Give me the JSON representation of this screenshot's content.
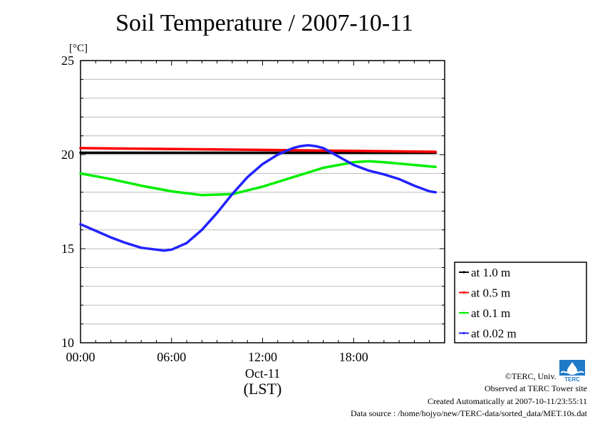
{
  "chart_data": {
    "type": "line",
    "title": "Soil Temperature / 2007-10-11",
    "ylabel": "[°C]",
    "xlabel": "(LST)",
    "date_label": "Oct-11",
    "ylim": [
      10,
      25
    ],
    "xlim": [
      0,
      24
    ],
    "yticks": [
      10,
      15,
      20,
      25
    ],
    "xticks": [
      {
        "value": 0,
        "label": "00:00"
      },
      {
        "value": 6,
        "label": "06:00"
      },
      {
        "value": 12,
        "label": "12:00"
      },
      {
        "value": 18,
        "label": "18:00"
      }
    ],
    "grid": true,
    "legend_position": "right, outside plot, lower",
    "series": [
      {
        "name": "at 1.0 m",
        "color": "#000000",
        "x": [
          0,
          6,
          12,
          18,
          23.4
        ],
        "y": [
          20.1,
          20.1,
          20.1,
          20.1,
          20.1
        ]
      },
      {
        "name": "at 0.5 m",
        "color": "#ff0000",
        "x": [
          0,
          6,
          12,
          18,
          23.4
        ],
        "y": [
          20.35,
          20.3,
          20.25,
          20.2,
          20.15
        ]
      },
      {
        "name": "at 0.1 m",
        "color": "#00ee00",
        "x": [
          0,
          2,
          4,
          6,
          8,
          10,
          12,
          14,
          16,
          18,
          19,
          20,
          22,
          23.4
        ],
        "y": [
          19.0,
          18.7,
          18.35,
          18.05,
          17.85,
          17.9,
          18.3,
          18.8,
          19.3,
          19.6,
          19.65,
          19.6,
          19.45,
          19.35
        ]
      },
      {
        "name": "at 0.02 m",
        "color": "#2222ff",
        "x": [
          0,
          1,
          2,
          3,
          4,
          5,
          5.5,
          6,
          7,
          8,
          9,
          10,
          11,
          12,
          13,
          14,
          14.5,
          15,
          15.5,
          16,
          17,
          18,
          19,
          20,
          21,
          22,
          23,
          23.4
        ],
        "y": [
          16.3,
          15.95,
          15.6,
          15.3,
          15.05,
          14.95,
          14.9,
          14.95,
          15.3,
          16.0,
          16.9,
          17.9,
          18.8,
          19.5,
          20.0,
          20.35,
          20.45,
          20.5,
          20.45,
          20.35,
          19.9,
          19.45,
          19.15,
          18.95,
          18.7,
          18.35,
          18.05,
          18.0
        ]
      }
    ]
  },
  "credits": {
    "copyright": "©TERC, Univ. Tsukuba",
    "observed": "Observed at TERC Tower site",
    "created": "Created Automatically at 2007-10-11/23:55:11",
    "source": "Data source : /home/hojyo/new/TERC-data/sorted_data/MET.10s.dat"
  },
  "logo_text": "TERC"
}
